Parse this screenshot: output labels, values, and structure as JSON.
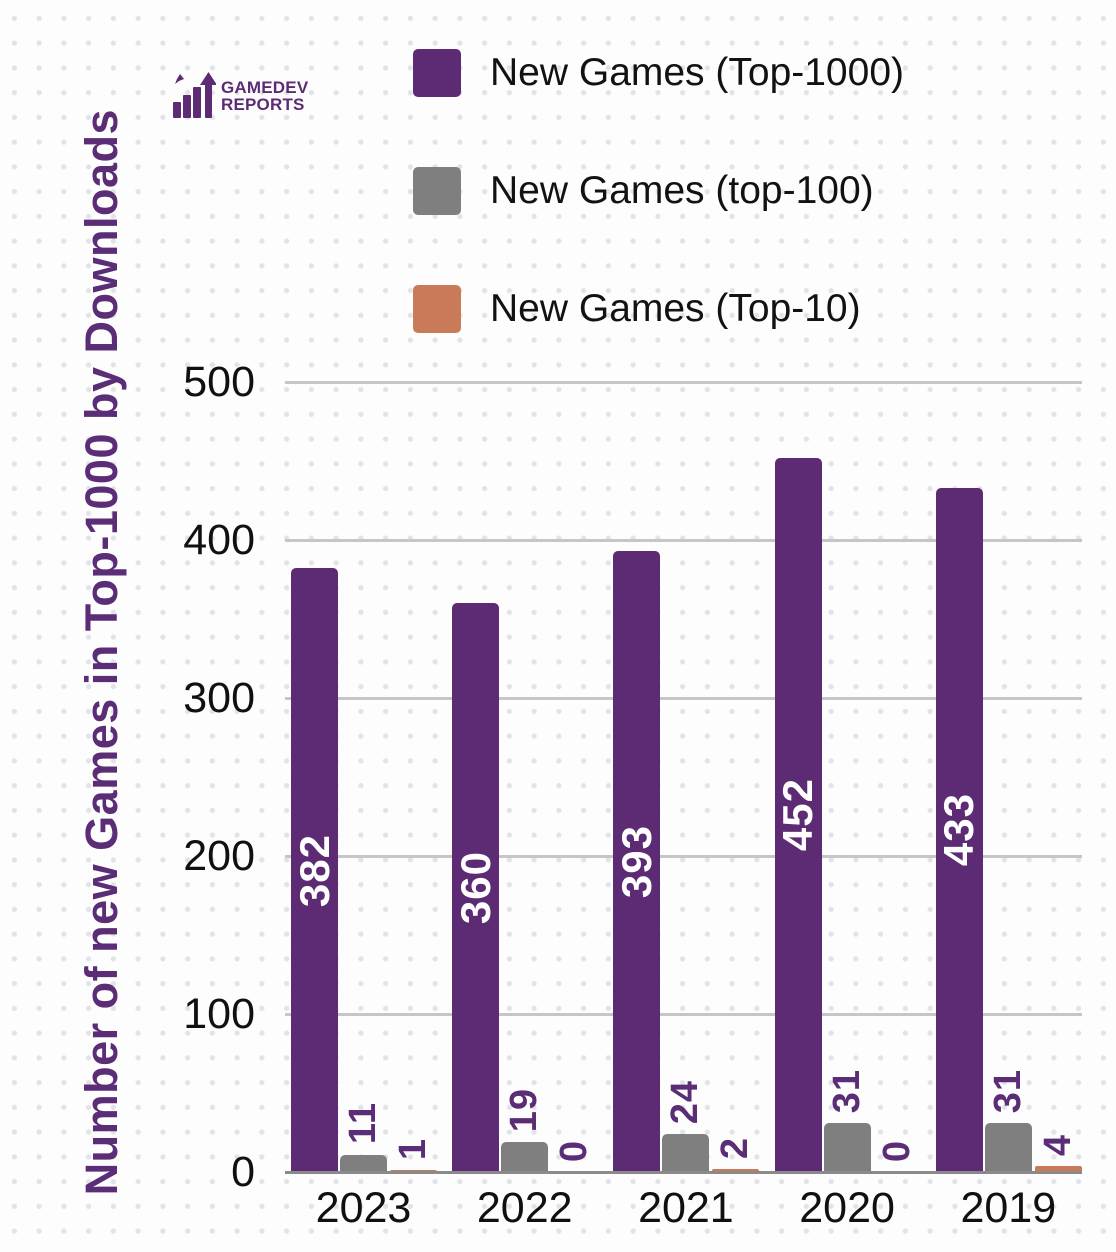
{
  "logo": {
    "icon": "bar-chart-growth-arrow-icon",
    "text_line1": "GAMEDEV",
    "text_line2": "REPORTS"
  },
  "y_axis_title": "Number of new Games in Top-1000 by Downloads",
  "legend": [
    {
      "label": "New Games (Top-1000)",
      "color": "#5c2b74"
    },
    {
      "label": "New Games (top-100)",
      "color": "#7f7f7f"
    },
    {
      "label": "New Games (Top-10)",
      "color": "#c97b59"
    }
  ],
  "chart_data": {
    "type": "bar",
    "categories": [
      "2023",
      "2022",
      "2021",
      "2020",
      "2019"
    ],
    "series": [
      {
        "name": "New Games (Top-1000)",
        "color": "#5c2b74",
        "values": [
          382,
          360,
          393,
          452,
          433
        ],
        "value_label_position": "inside",
        "value_label_color": "#ffffff"
      },
      {
        "name": "New Games (top-100)",
        "color": "#7f7f7f",
        "values": [
          11,
          19,
          24,
          31,
          31
        ],
        "value_label_position": "above",
        "value_label_color": "#5b2d76"
      },
      {
        "name": "New Games (Top-10)",
        "color": "#c97b59",
        "values": [
          1,
          0,
          2,
          0,
          4
        ],
        "value_label_position": "above",
        "value_label_color": "#5b2d76"
      }
    ],
    "title": "",
    "xlabel": "",
    "ylabel": "Number of new Games in Top-1000 by Downloads",
    "yticks": [
      0,
      100,
      200,
      300,
      400,
      500
    ],
    "ylim": [
      0,
      500
    ],
    "grid": true,
    "legend_position": "top-center",
    "value_label_rotation": "vertical-bottom-to-top"
  },
  "colors": {
    "background": "#fdfdfd",
    "dot_pattern": "#e1e3e9",
    "axis_title": "#5b2d76",
    "tick_label": "#101010",
    "gridline": "#c6c6c6",
    "axis_line": "#8a8a8a"
  }
}
